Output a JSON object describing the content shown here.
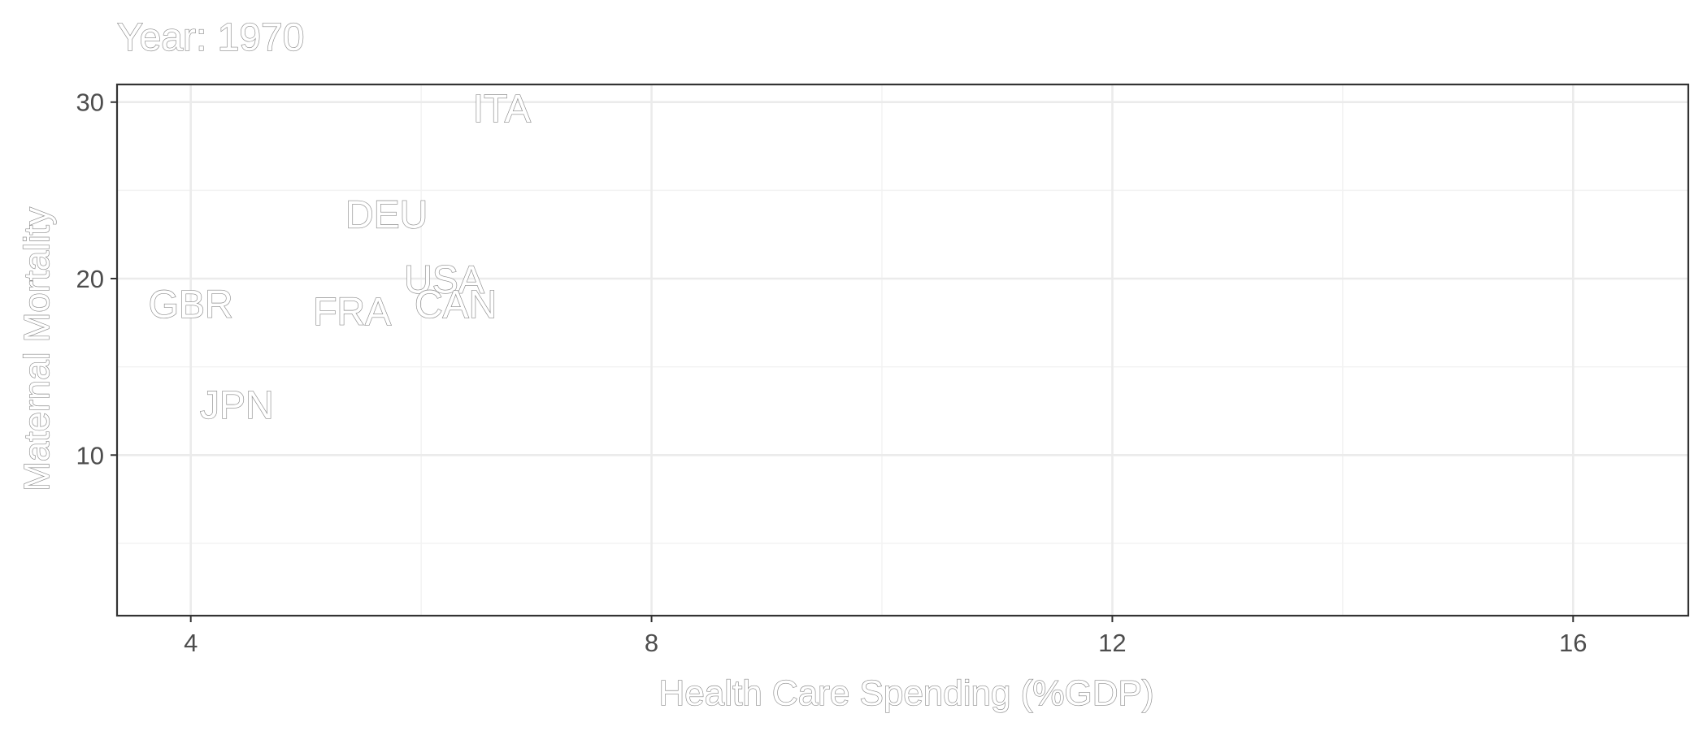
{
  "chart_data": {
    "type": "scatter",
    "title": "Year: 1970",
    "xlabel": "Health Care Spending (%GDP)",
    "ylabel": "Maternal Mortality",
    "xlim": [
      3.36,
      17.0
    ],
    "ylim": [
      0.9,
      31.0
    ],
    "x_ticks": [
      4,
      8,
      12,
      16
    ],
    "y_ticks": [
      10,
      20,
      30
    ],
    "x_minor": [
      6,
      10,
      14
    ],
    "y_minor": [
      5,
      15,
      25
    ],
    "grid": true,
    "marker": "country-code-text",
    "points": [
      {
        "label": "ITA",
        "x": 6.7,
        "y": 29.6
      },
      {
        "label": "DEU",
        "x": 5.7,
        "y": 23.6
      },
      {
        "label": "USA",
        "x": 6.2,
        "y": 19.9
      },
      {
        "label": "CAN",
        "x": 6.3,
        "y": 18.5
      },
      {
        "label": "GBR",
        "x": 4.0,
        "y": 18.5
      },
      {
        "label": "FRA",
        "x": 5.4,
        "y": 18.1
      },
      {
        "label": "JPN",
        "x": 4.4,
        "y": 12.8
      }
    ]
  }
}
